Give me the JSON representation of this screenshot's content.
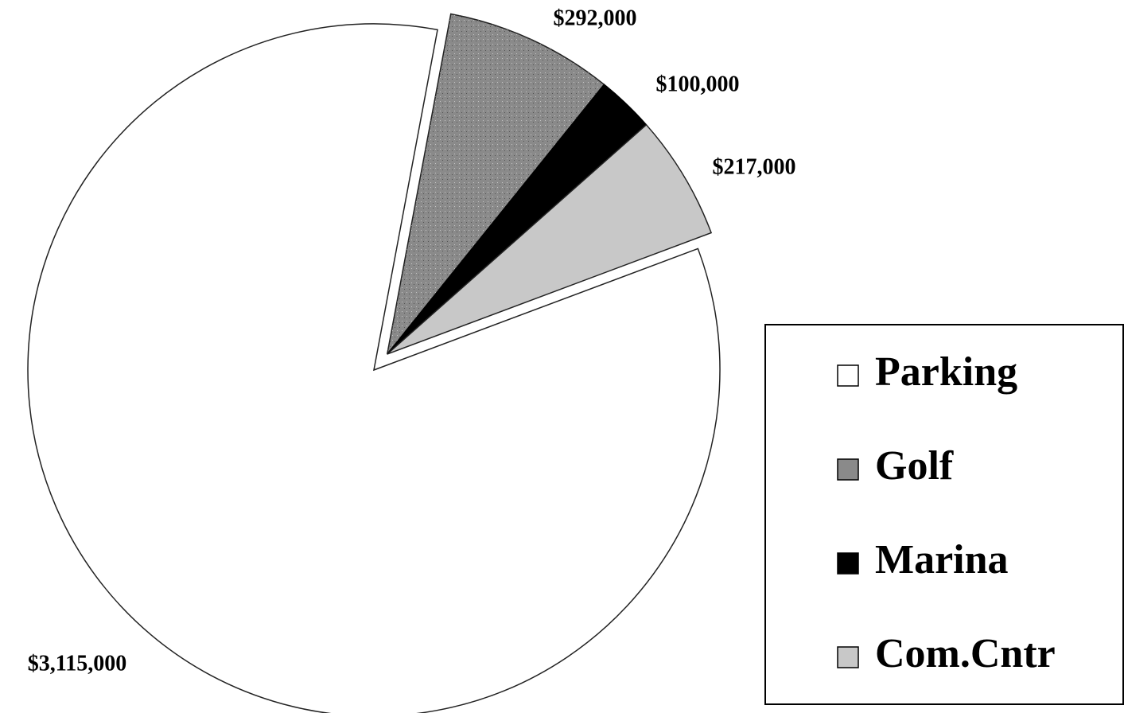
{
  "chart_data": {
    "type": "pie",
    "categories": [
      "Parking",
      "Golf",
      "Marina",
      "Com.Cntr"
    ],
    "values": [
      3115000,
      292000,
      100000,
      217000
    ],
    "value_labels": [
      "$3,115,000",
      "$292,000",
      "$100,000",
      "$217,000"
    ],
    "colors": [
      "#ffffff",
      "#8a8a8a",
      "#000000",
      "#c8c8c8"
    ],
    "legend": "right"
  }
}
